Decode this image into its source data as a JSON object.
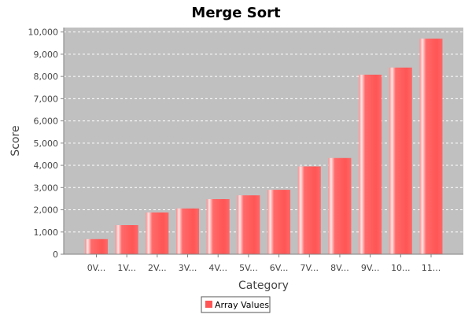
{
  "chart_data": {
    "type": "bar",
    "title": "Merge Sort",
    "xlabel": "Category",
    "ylabel": "Score",
    "categories": [
      "0V...",
      "1V...",
      "2V...",
      "3V...",
      "4V...",
      "5V...",
      "6V...",
      "7V...",
      "8V...",
      "9V...",
      "10...",
      "11..."
    ],
    "series": [
      {
        "name": "Array Values",
        "values": [
          680,
          1310,
          1880,
          2060,
          2480,
          2650,
          2900,
          3950,
          4330,
          8080,
          8400,
          9700
        ]
      }
    ],
    "ylim": [
      0,
      10200
    ],
    "yticks": [
      0,
      1000,
      2000,
      3000,
      4000,
      5000,
      6000,
      7000,
      8000,
      9000,
      10000
    ],
    "ytick_labels": [
      "0",
      "1,000",
      "2,000",
      "3,000",
      "4,000",
      "5,000",
      "6,000",
      "7,000",
      "8,000",
      "9,000",
      "10,000"
    ],
    "grid": true,
    "legend_position": "bottom",
    "colors": {
      "bar": "#ff5555",
      "plot_background": "#c0c0c0",
      "gridline": "#ffffff"
    }
  }
}
